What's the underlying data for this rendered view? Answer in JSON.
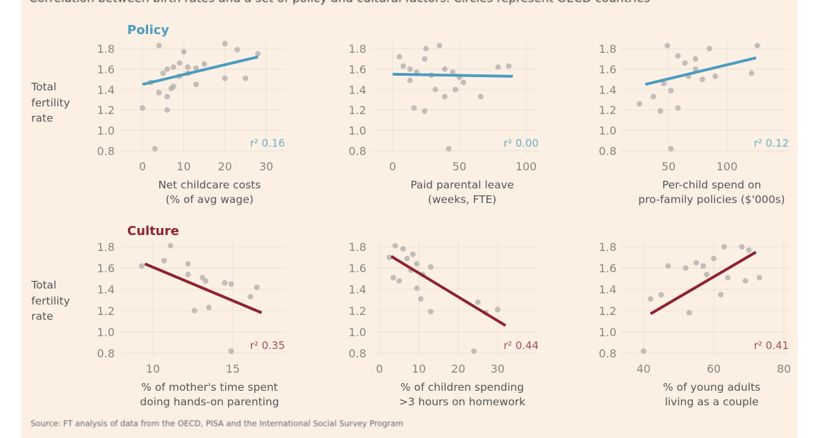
{
  "title": "Correlation between birth rates and a set of policy and cultural factors. Circles represent OECD countries",
  "source": "Source: FT analysis of data from the OECD, PISA and the International Social Survey Program",
  "colors": {
    "background": "#fcf0e4",
    "policy": "#4a9cc2",
    "culture": "#8e2330",
    "dots": "#b8b4b0",
    "grid": "#eadfd4",
    "text": "#555555"
  },
  "chart_data": [
    {
      "type": "scatter",
      "section": "Policy",
      "ylabel": "Total fertility rate",
      "xlabel": [
        "Net childcare costs",
        "(% of avg wage)"
      ],
      "xticks": [
        0,
        10,
        20,
        30
      ],
      "yticks": [
        1.8,
        1.6,
        1.4,
        1.2,
        1.0,
        0.8
      ],
      "ylim": [
        0.8,
        1.8
      ],
      "r2": "r² 0.16",
      "trend": [
        [
          0,
          1.45
        ],
        [
          28,
          1.72
        ]
      ],
      "points": [
        [
          4,
          1.83
        ],
        [
          10,
          1.77
        ],
        [
          20,
          1.85
        ],
        [
          23,
          1.79
        ],
        [
          28,
          1.75
        ],
        [
          9,
          1.66
        ],
        [
          6,
          1.6
        ],
        [
          7.5,
          1.62
        ],
        [
          5,
          1.56
        ],
        [
          11,
          1.62
        ],
        [
          13,
          1.61
        ],
        [
          15,
          1.65
        ],
        [
          2,
          1.47
        ],
        [
          4,
          1.37
        ],
        [
          6,
          1.33
        ],
        [
          7,
          1.41
        ],
        [
          7.5,
          1.43
        ],
        [
          6,
          1.2
        ],
        [
          0,
          1.22
        ],
        [
          13,
          1.45
        ],
        [
          20,
          1.51
        ],
        [
          25,
          1.51
        ],
        [
          3,
          0.82
        ],
        [
          9,
          1.53
        ],
        [
          11,
          1.56
        ]
      ]
    },
    {
      "type": "scatter",
      "section": "Policy",
      "ylabel": "",
      "xlabel": [
        "Paid parental leave",
        "(weeks, FTE)"
      ],
      "xticks": [
        0,
        50,
        100
      ],
      "yticks": [
        1.8,
        1.6,
        1.4,
        1.2,
        1.0,
        0.8
      ],
      "ylim": [
        0.8,
        1.8
      ],
      "r2": "r² 0.00",
      "trend": [
        [
          0,
          1.55
        ],
        [
          90,
          1.53
        ]
      ],
      "points": [
        [
          5,
          1.72
        ],
        [
          8,
          1.63
        ],
        [
          13,
          1.6
        ],
        [
          18,
          1.57
        ],
        [
          24,
          1.7
        ],
        [
          35,
          1.83
        ],
        [
          25,
          1.8
        ],
        [
          39,
          1.6
        ],
        [
          45,
          1.57
        ],
        [
          50,
          1.52
        ],
        [
          53,
          1.47
        ],
        [
          47,
          1.4
        ],
        [
          39,
          1.33
        ],
        [
          32,
          1.4
        ],
        [
          16,
          1.22
        ],
        [
          24,
          1.19
        ],
        [
          66,
          1.33
        ],
        [
          42,
          0.82
        ],
        [
          79,
          1.62
        ],
        [
          87,
          1.63
        ],
        [
          13,
          1.49
        ],
        [
          29,
          1.54
        ]
      ]
    },
    {
      "type": "scatter",
      "section": "Policy",
      "ylabel": "",
      "xlabel": [
        "Per-child spend on",
        "pro-family policies ($'000s)"
      ],
      "xticks": [
        50,
        100
      ],
      "yticks": [
        1.8,
        1.6,
        1.4,
        1.2,
        1.0,
        0.8
      ],
      "ylim": [
        0.8,
        1.8
      ],
      "r2": "r² 0.12",
      "trend": [
        [
          30,
          1.45
        ],
        [
          125,
          1.71
        ]
      ],
      "points": [
        [
          49,
          1.83
        ],
        [
          85,
          1.8
        ],
        [
          126,
          1.83
        ],
        [
          58,
          1.73
        ],
        [
          64,
          1.66
        ],
        [
          73,
          1.6
        ],
        [
          67,
          1.53
        ],
        [
          46,
          1.46
        ],
        [
          52,
          1.39
        ],
        [
          37,
          1.33
        ],
        [
          25,
          1.26
        ],
        [
          58,
          1.22
        ],
        [
          79,
          1.5
        ],
        [
          90,
          1.53
        ],
        [
          121,
          1.56
        ],
        [
          52,
          0.82
        ],
        [
          43,
          1.19
        ],
        [
          73,
          1.7
        ]
      ]
    },
    {
      "type": "scatter",
      "section": "Culture",
      "ylabel": "Total fertility rate",
      "xlabel": [
        "% of mother's time spent",
        "doing hands-on parenting"
      ],
      "xticks": [
        10,
        15
      ],
      "yticks": [
        1.8,
        1.6,
        1.4,
        1.2,
        1.0,
        0.8
      ],
      "ylim": [
        0.8,
        1.8
      ],
      "r2": "r² 0.35",
      "trend": [
        [
          9.5,
          1.64
        ],
        [
          16.8,
          1.18
        ]
      ],
      "points": [
        [
          9.3,
          1.62
        ],
        [
          11.1,
          1.81
        ],
        [
          10.7,
          1.67
        ],
        [
          12.2,
          1.64
        ],
        [
          13.1,
          1.51
        ],
        [
          13.3,
          1.48
        ],
        [
          14.5,
          1.46
        ],
        [
          14.9,
          1.45
        ],
        [
          12.6,
          1.2
        ],
        [
          13.5,
          1.23
        ],
        [
          16.1,
          1.33
        ],
        [
          16.5,
          1.42
        ],
        [
          14.9,
          0.82
        ],
        [
          12.2,
          1.54
        ]
      ]
    },
    {
      "type": "scatter",
      "section": "Culture",
      "ylabel": "",
      "xlabel": [
        "% of children spending",
        ">3 hours on homework"
      ],
      "xticks": [
        0,
        10,
        20,
        30
      ],
      "yticks": [
        1.8,
        1.6,
        1.4,
        1.2,
        1.0,
        0.8
      ],
      "ylim": [
        0.8,
        1.8
      ],
      "r2": "r² 0.44",
      "trend": [
        [
          3,
          1.71
        ],
        [
          32,
          1.06
        ]
      ],
      "points": [
        [
          4,
          1.81
        ],
        [
          6,
          1.78
        ],
        [
          2.5,
          1.7
        ],
        [
          7,
          1.69
        ],
        [
          9.5,
          1.64
        ],
        [
          8,
          1.58
        ],
        [
          13,
          1.61
        ],
        [
          3.5,
          1.51
        ],
        [
          5,
          1.48
        ],
        [
          9.5,
          1.41
        ],
        [
          10.5,
          1.31
        ],
        [
          13,
          1.19
        ],
        [
          25,
          1.28
        ],
        [
          27,
          1.18
        ],
        [
          30,
          1.21
        ],
        [
          24,
          0.82
        ],
        [
          11,
          1.54
        ],
        [
          8.5,
          1.73
        ]
      ]
    },
    {
      "type": "scatter",
      "section": "Culture",
      "ylabel": "",
      "xlabel": [
        "% of young adults",
        "living as a couple"
      ],
      "xticks": [
        40,
        60,
        80
      ],
      "yticks": [
        1.8,
        1.6,
        1.4,
        1.2,
        1.0,
        0.8
      ],
      "ylim": [
        0.8,
        1.8
      ],
      "r2": "r² 0.41",
      "trend": [
        [
          42,
          1.17
        ],
        [
          72,
          1.75
        ]
      ],
      "points": [
        [
          40,
          0.82
        ],
        [
          42,
          1.31
        ],
        [
          47,
          1.62
        ],
        [
          52,
          1.6
        ],
        [
          55,
          1.65
        ],
        [
          57,
          1.62
        ],
        [
          60,
          1.69
        ],
        [
          63,
          1.8
        ],
        [
          68,
          1.8
        ],
        [
          70,
          1.77
        ],
        [
          64,
          1.51
        ],
        [
          62,
          1.35
        ],
        [
          69,
          1.48
        ],
        [
          73,
          1.51
        ],
        [
          53,
          1.18
        ],
        [
          45,
          1.35
        ],
        [
          58,
          1.54
        ]
      ]
    }
  ]
}
